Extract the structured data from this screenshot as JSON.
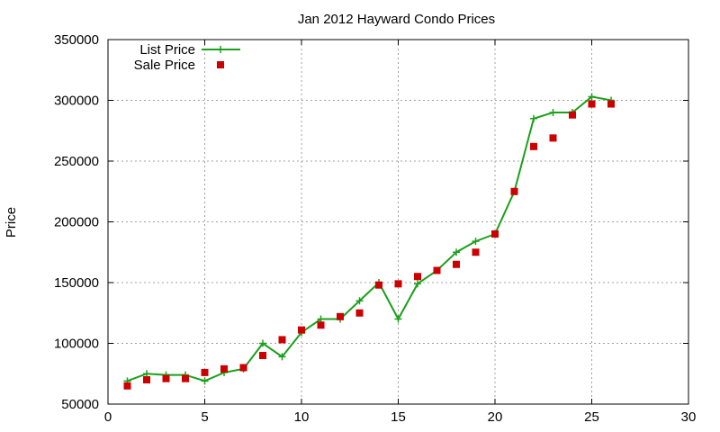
{
  "chart_data": {
    "type": "line",
    "title": "Jan 2012 Hayward Condo Prices",
    "xlabel": "",
    "ylabel": "Price",
    "xlim": [
      0,
      30
    ],
    "ylim": [
      50000,
      350000
    ],
    "xticks": [
      0,
      5,
      10,
      15,
      20,
      25,
      30
    ],
    "yticks": [
      50000,
      100000,
      150000,
      200000,
      250000,
      300000,
      350000
    ],
    "grid": true,
    "legend_position": "top-left",
    "series": [
      {
        "name": "List Price",
        "style": "lines+points",
        "marker": "plus",
        "color": "#1aa01a",
        "x": [
          1,
          2,
          3,
          4,
          5,
          6,
          7,
          8,
          9,
          10,
          11,
          12,
          13,
          14,
          15,
          16,
          17,
          18,
          19,
          20,
          21,
          22,
          23,
          24,
          25,
          26
        ],
        "y": [
          69000,
          75000,
          74000,
          74000,
          69000,
          76000,
          79000,
          100000,
          89000,
          109000,
          120000,
          120000,
          135000,
          150000,
          120000,
          149000,
          160000,
          175000,
          184000,
          190000,
          225000,
          285000,
          290000,
          290000,
          303000,
          300000
        ]
      },
      {
        "name": "Sale Price",
        "style": "points",
        "marker": "square",
        "color": "#cc0000",
        "x": [
          1,
          2,
          3,
          4,
          5,
          6,
          7,
          8,
          9,
          10,
          11,
          12,
          13,
          14,
          15,
          16,
          17,
          18,
          19,
          20,
          21,
          22,
          23,
          24,
          25,
          26
        ],
        "y": [
          65000,
          70000,
          71000,
          71000,
          76000,
          79000,
          80000,
          90000,
          103000,
          111000,
          115000,
          122000,
          125000,
          148000,
          149000,
          155000,
          160000,
          165000,
          175000,
          190000,
          225000,
          262000,
          269000,
          288000,
          297000,
          297000
        ]
      }
    ]
  }
}
